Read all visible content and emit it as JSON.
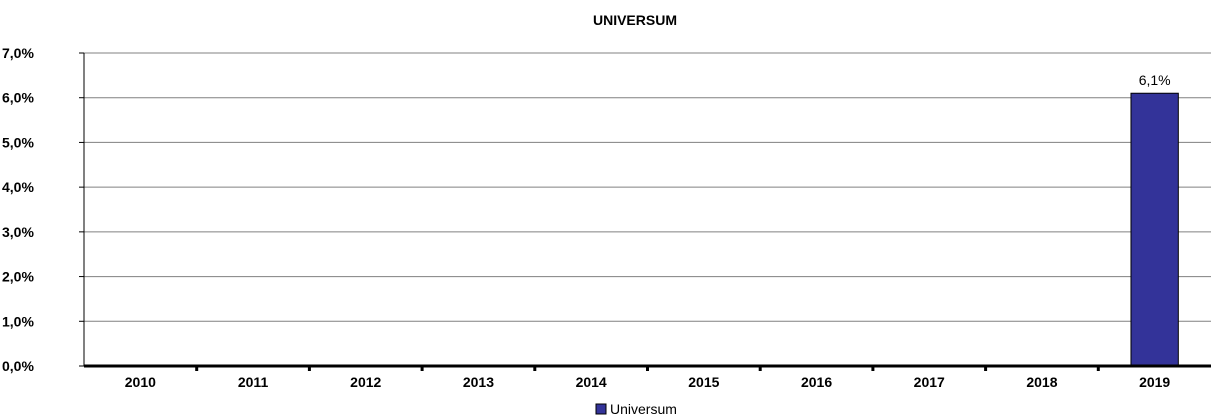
{
  "chart_data": {
    "type": "bar",
    "title": "UNIVERSUM",
    "categories": [
      "2010",
      "2011",
      "2012",
      "2013",
      "2014",
      "2015",
      "2016",
      "2017",
      "2018",
      "2019"
    ],
    "series": [
      {
        "name": "Universum",
        "values": [
          0,
          0,
          0,
          0,
          0,
          0,
          0,
          0,
          0,
          6.1
        ],
        "color": "#333399"
      }
    ],
    "data_labels": [
      "",
      "",
      "",
      "",
      "",
      "",
      "",
      "",
      "",
      "6,1%"
    ],
    "ylim": [
      0,
      7
    ],
    "y_ticks": [
      "0,0%",
      "1,0%",
      "2,0%",
      "3,0%",
      "4,0%",
      "5,0%",
      "6,0%",
      "7,0%"
    ],
    "grid": true,
    "legend_position": "bottom",
    "xlabel": "",
    "ylabel": ""
  }
}
